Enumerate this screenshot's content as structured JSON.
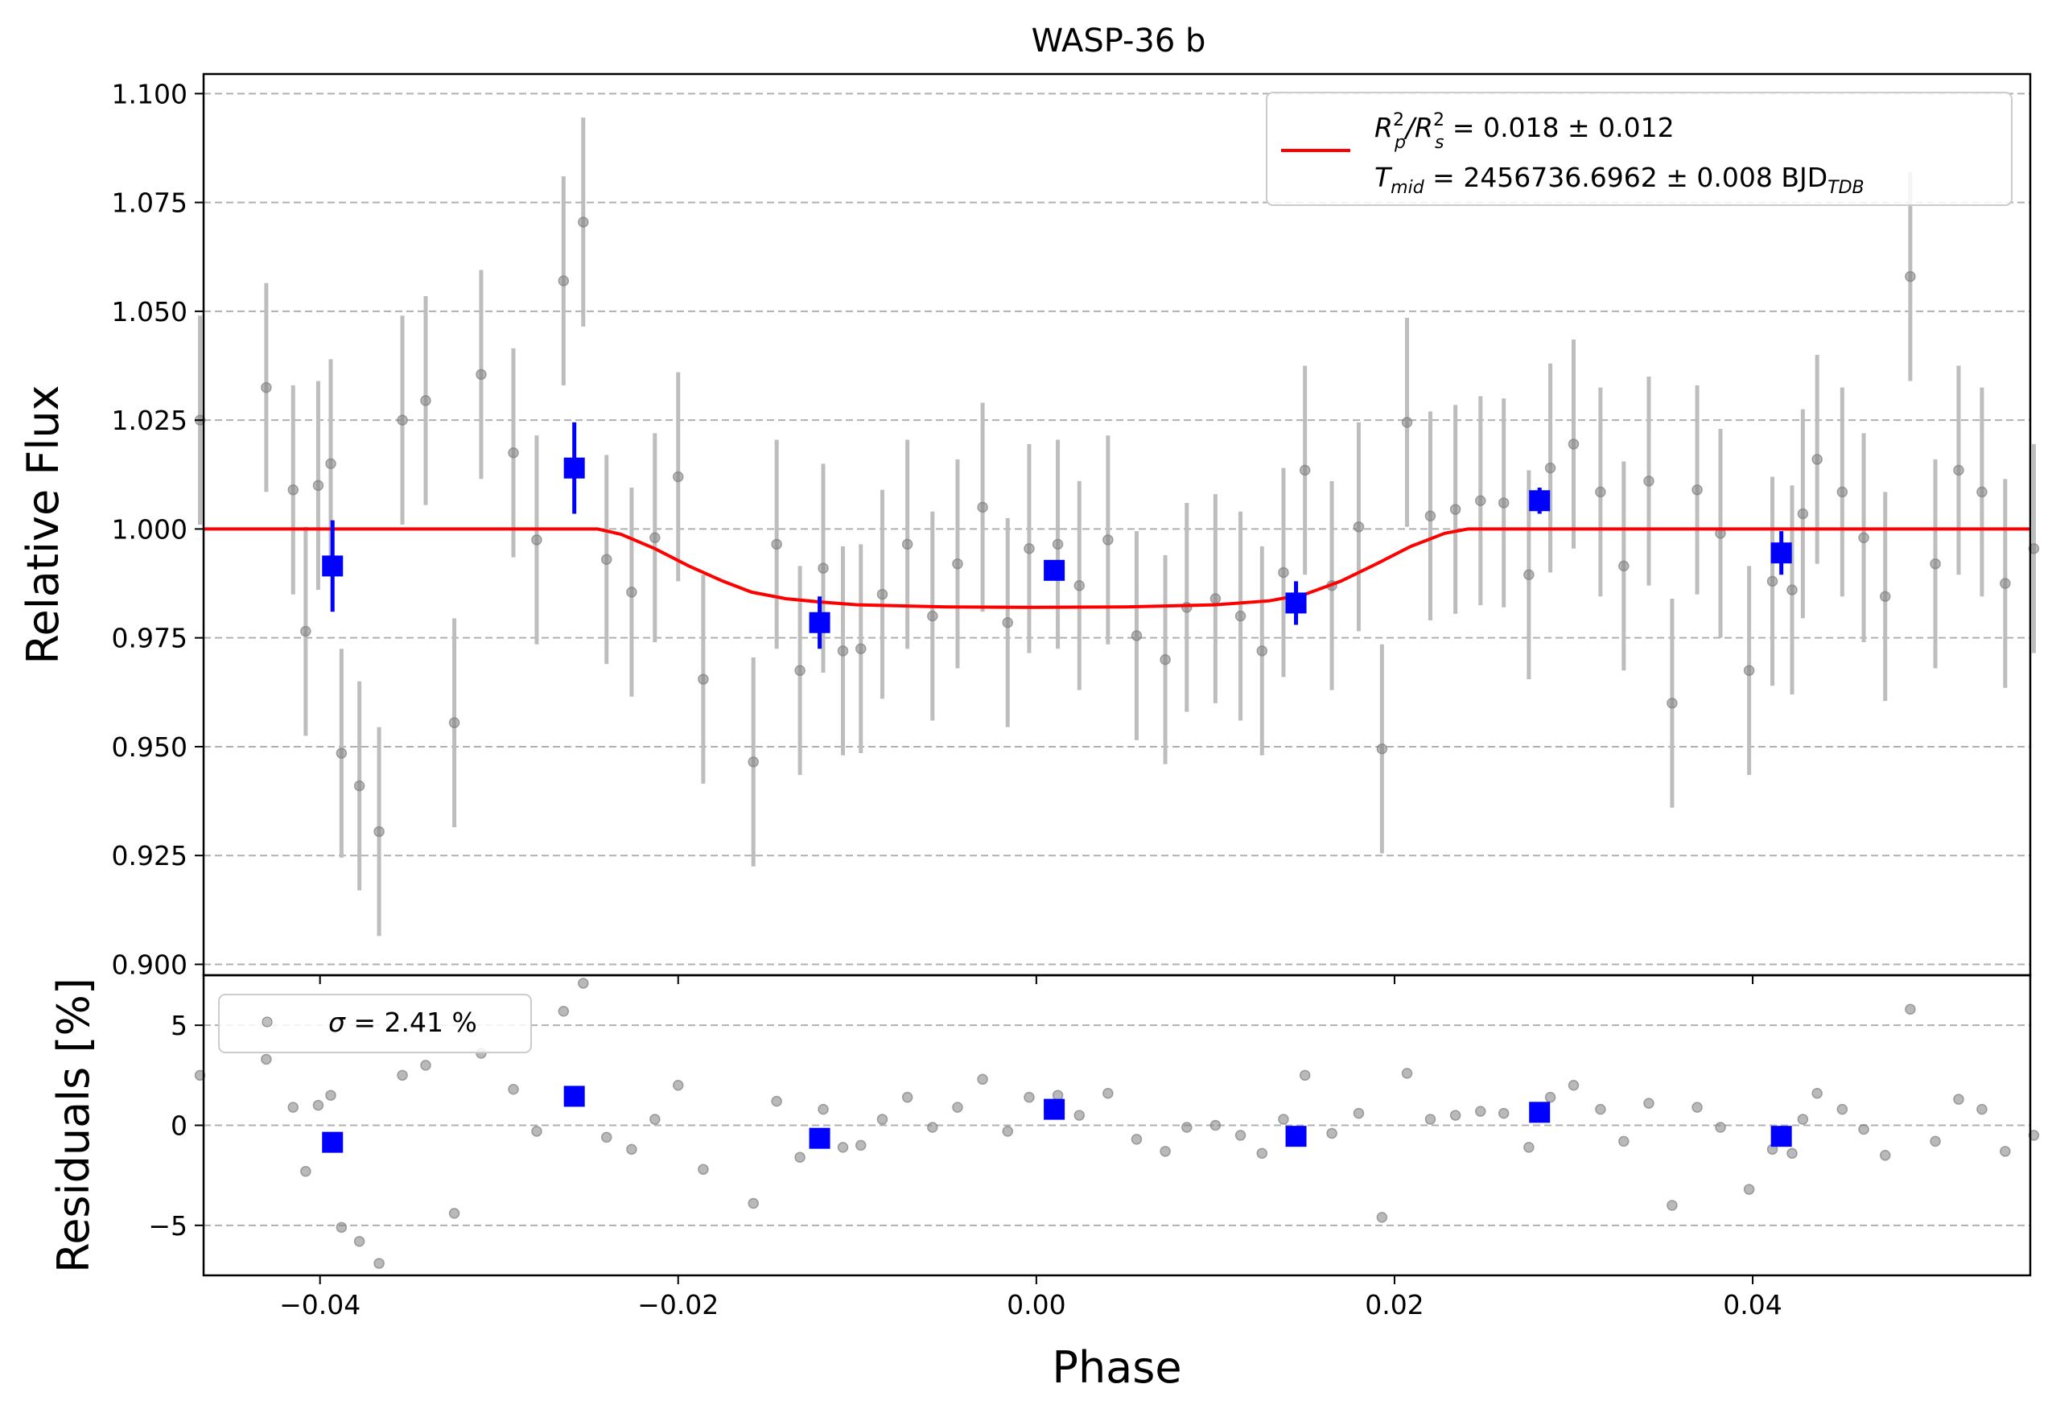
{
  "chart_data": [
    {
      "type": "scatter",
      "panel": "light-curve",
      "title": "WASP-36 b",
      "xlabel": "",
      "ylabel": "Relative Flux",
      "xlim": [
        -0.0465,
        0.0555
      ],
      "ylim": [
        0.8975,
        1.1045
      ],
      "x_ticks": [
        -0.04,
        -0.02,
        0.0,
        0.02,
        0.04
      ],
      "x_tick_labels": [
        "−0.04",
        "−0.02",
        "0.00",
        "0.02",
        "0.04"
      ],
      "y_ticks": [
        0.9,
        0.925,
        0.95,
        0.975,
        1.0,
        1.025,
        1.05,
        1.075,
        1.1
      ],
      "y_tick_labels": [
        "0.900",
        "0.925",
        "0.950",
        "0.975",
        "1.000",
        "1.025",
        "1.050",
        "1.075",
        "1.100"
      ],
      "grid": "horizontal dashed",
      "legend_position": "top-right",
      "legend": {
        "rp_prefix": "R",
        "rp_sub": "p",
        "rp_sup": "2",
        "rs_prefix": "/R",
        "rs_sub": "s",
        "rs_sup": "2",
        "rp_value": " = 0.018 ± 0.012",
        "tmid_prefix": "T",
        "tmid_sub": "mid",
        "tmid_value": " = 2456736.6962 ± 0.008 BJD",
        "tmid_unit_sub": "TDB"
      },
      "series": [
        {
          "kind": "data",
          "color": "#808080",
          "error": 0.024,
          "x": [
            -0.0467,
            -0.043,
            -0.0415,
            -0.0408,
            -0.0401,
            -0.0394,
            -0.0388,
            -0.0378,
            -0.0367,
            -0.0354,
            -0.0341,
            -0.0325,
            -0.031,
            -0.0292,
            -0.0279,
            -0.0264,
            -0.0253,
            -0.024,
            -0.0226,
            -0.0213,
            -0.02,
            -0.0186,
            -0.0158,
            -0.0145,
            -0.0132,
            -0.0119,
            -0.0108,
            -0.0098,
            -0.0086,
            -0.0072,
            -0.0058,
            -0.0044,
            -0.003,
            -0.0016,
            -0.0004,
            0.0012,
            0.0024,
            0.004,
            0.0056,
            0.0072,
            0.0084,
            0.01,
            0.0114,
            0.0126,
            0.0138,
            0.015,
            0.0165,
            0.018,
            0.0193,
            0.0207,
            0.022,
            0.0234,
            0.0248,
            0.0261,
            0.0275,
            0.0287,
            0.03,
            0.0315,
            0.0328,
            0.0342,
            0.0355,
            0.0369,
            0.0382,
            0.0398,
            0.0411,
            0.0422,
            0.0428,
            0.0436,
            0.045,
            0.0462,
            0.0474,
            0.0488,
            0.0502,
            0.0515,
            0.0528,
            0.0541,
            0.0557
          ],
          "y": [
            1.025,
            1.0325,
            1.009,
            0.9765,
            1.01,
            1.015,
            0.9485,
            0.941,
            0.9305,
            1.025,
            1.0295,
            0.9555,
            1.0355,
            1.0175,
            0.9975,
            1.057,
            1.0705,
            0.993,
            0.9855,
            0.998,
            1.012,
            0.9655,
            0.9465,
            0.9965,
            0.9675,
            0.991,
            0.972,
            0.9725,
            0.985,
            0.9965,
            0.98,
            0.992,
            1.005,
            0.9785,
            0.9955,
            0.9965,
            0.987,
            0.9975,
            0.9755,
            0.97,
            0.982,
            0.984,
            0.98,
            0.972,
            0.99,
            1.0135,
            0.987,
            1.0005,
            0.9495,
            1.0245,
            1.003,
            1.0045,
            1.0065,
            1.006,
            0.9895,
            1.014,
            1.0195,
            1.0085,
            0.9915,
            1.011,
            0.96,
            1.009,
            0.999,
            0.9675,
            0.988,
            0.986,
            1.0035,
            1.016,
            1.0085,
            0.998,
            0.9845,
            1.058,
            0.992,
            1.0135,
            1.0085,
            0.9875,
            0.9955
          ]
        },
        {
          "kind": "binned",
          "color": "#0000ff",
          "x": [
            -0.0393,
            -0.0258,
            -0.0121,
            0.001,
            0.0145,
            0.0281,
            0.0416
          ],
          "y": [
            0.9915,
            1.014,
            0.9785,
            0.9905,
            0.983,
            1.0065,
            0.9945
          ],
          "error": [
            0.0105,
            0.0105,
            0.006,
            0.002,
            0.005,
            0.003,
            0.005
          ]
        },
        {
          "kind": "model",
          "color": "#ff0000",
          "x": [
            -0.0465,
            -0.0245,
            -0.0232,
            -0.0213,
            -0.0194,
            -0.0175,
            -0.0159,
            -0.014,
            -0.012,
            -0.01,
            -0.005,
            0.0,
            0.005,
            0.01,
            0.013,
            0.015,
            0.017,
            0.019,
            0.0209,
            0.0228,
            0.0241,
            0.0555
          ],
          "y": [
            1.0,
            1.0,
            0.9988,
            0.9955,
            0.9915,
            0.988,
            0.9855,
            0.984,
            0.9832,
            0.9826,
            0.9821,
            0.982,
            0.9821,
            0.9826,
            0.9835,
            0.985,
            0.988,
            0.992,
            0.996,
            0.999,
            1.0,
            1.0
          ]
        }
      ]
    },
    {
      "type": "scatter",
      "panel": "residuals",
      "xlabel": "Phase",
      "ylabel": "Residuals [%]",
      "xlim": [
        -0.0465,
        0.0555
      ],
      "ylim": [
        -7.5,
        7.5
      ],
      "x_ticks": [
        -0.04,
        -0.02,
        0.0,
        0.02,
        0.04
      ],
      "x_tick_labels": [
        "−0.04",
        "−0.02",
        "0.00",
        "0.02",
        "0.04"
      ],
      "y_ticks": [
        -5,
        0,
        5
      ],
      "y_tick_labels": [
        "−5",
        "0",
        "5"
      ],
      "grid": "horizontal dashed",
      "legend_position": "top-left",
      "legend": {
        "sigma_symbol": "σ",
        "sigma_text": " = 2.41 %"
      },
      "series": [
        {
          "kind": "data",
          "color": "#808080",
          "x": [
            -0.0467,
            -0.043,
            -0.0415,
            -0.0408,
            -0.0401,
            -0.0394,
            -0.0388,
            -0.0378,
            -0.0367,
            -0.0354,
            -0.0341,
            -0.0325,
            -0.031,
            -0.0292,
            -0.0279,
            -0.0264,
            -0.0253,
            -0.024,
            -0.0226,
            -0.0213,
            -0.02,
            -0.0186,
            -0.0158,
            -0.0145,
            -0.0132,
            -0.0119,
            -0.0108,
            -0.0098,
            -0.0086,
            -0.0072,
            -0.0058,
            -0.0044,
            -0.003,
            -0.0016,
            -0.0004,
            0.0012,
            0.0024,
            0.004,
            0.0056,
            0.0072,
            0.0084,
            0.01,
            0.0114,
            0.0126,
            0.0138,
            0.015,
            0.0165,
            0.018,
            0.0193,
            0.0207,
            0.022,
            0.0234,
            0.0248,
            0.0261,
            0.0275,
            0.0287,
            0.03,
            0.0315,
            0.0328,
            0.0342,
            0.0355,
            0.0369,
            0.0382,
            0.0398,
            0.0411,
            0.0422,
            0.0428,
            0.0436,
            0.045,
            0.0462,
            0.0474,
            0.0488,
            0.0502,
            0.0515,
            0.0528,
            0.0541,
            0.0557
          ],
          "y": [
            2.5,
            3.3,
            0.9,
            -2.3,
            1.0,
            1.5,
            -5.1,
            -5.8,
            -6.9,
            2.5,
            3.0,
            -4.4,
            3.6,
            1.8,
            -0.3,
            5.7,
            7.1,
            -0.6,
            -1.2,
            0.3,
            2.0,
            -2.2,
            -3.9,
            1.2,
            -1.6,
            0.8,
            -1.1,
            -1.0,
            0.3,
            1.4,
            -0.1,
            0.9,
            2.3,
            -0.3,
            1.4,
            1.5,
            0.5,
            1.6,
            -0.7,
            -1.3,
            -0.1,
            0.0,
            -0.5,
            -1.4,
            0.3,
            2.5,
            -0.4,
            0.6,
            -4.6,
            2.6,
            0.3,
            0.5,
            0.7,
            0.6,
            -1.1,
            1.4,
            2.0,
            0.8,
            -0.8,
            1.1,
            -4.0,
            0.9,
            -0.1,
            -3.2,
            -1.2,
            -1.4,
            0.3,
            1.6,
            0.8,
            -0.2,
            -1.5,
            5.8,
            -0.8,
            1.3,
            0.8,
            -1.3,
            -0.5
          ]
        },
        {
          "kind": "binned",
          "color": "#0000ff",
          "x": [
            -0.0393,
            -0.0258,
            -0.0121,
            0.001,
            0.0145,
            0.0281,
            0.0416
          ],
          "y": [
            -0.85,
            1.45,
            -0.65,
            0.8,
            -0.55,
            0.65,
            -0.55
          ]
        }
      ]
    }
  ]
}
